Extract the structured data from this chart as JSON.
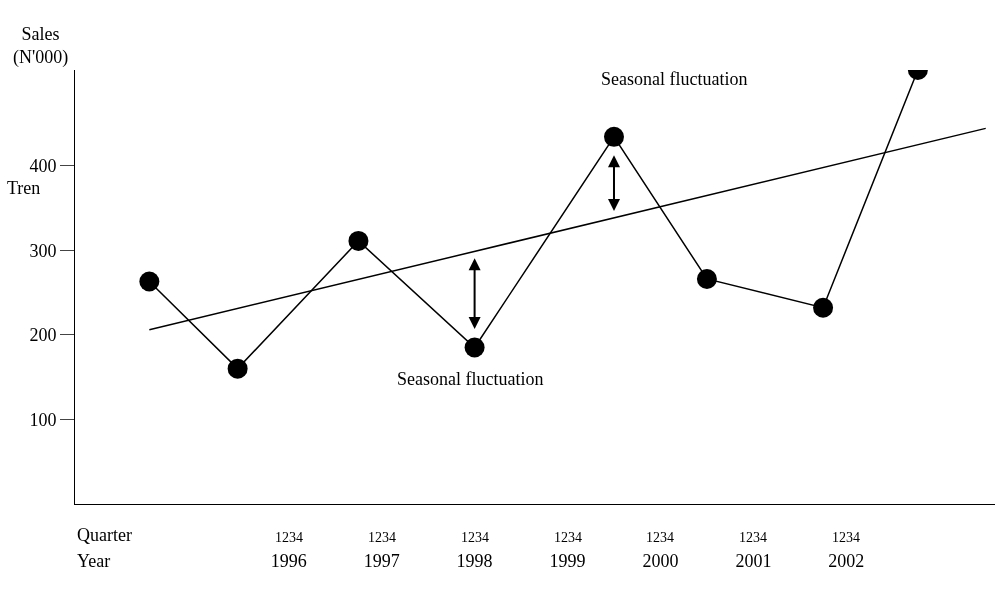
{
  "chart_data": {
    "type": "line",
    "ylabel": "Sales (N'000)",
    "x": [
      1994.5,
      1995.45,
      1996.75,
      1998.0,
      1999.5,
      2000.5,
      2001.75,
      2002.77
    ],
    "series": [
      {
        "color": "#000000",
        "values": [
          263,
          160,
          311,
          185,
          434,
          266,
          232,
          513
        ]
      },
      {
        "type": "line",
        "color": "#000000",
        "x": [
          1994.5,
          2003.5
        ],
        "values": [
          206,
          444
        ],
        "marker": "none"
      }
    ],
    "xlim": [
      1993.7,
      2003.6
    ],
    "ylim": [
      0,
      513
    ],
    "xticks": [
      {
        "value": 1996,
        "label": "1996"
      },
      {
        "value": 1997,
        "label": "1997"
      },
      {
        "value": 1998,
        "label": "1998"
      },
      {
        "value": 1999,
        "label": "1999"
      },
      {
        "value": 2000,
        "label": "2000"
      },
      {
        "value": 2001,
        "label": "2001"
      },
      {
        "value": 2002,
        "label": "2002"
      }
    ],
    "yticks": [
      100,
      200,
      300,
      400
    ],
    "marker": "circle",
    "annotations": [
      "Tren",
      {
        "text": "Seasonal fluctuation",
        "x": 1998.0,
        "y": 185
      },
      {
        "text": "Seasonal fluctuation",
        "x": 1999.5,
        "y": 434
      },
      "Quarter",
      "Year",
      "1234",
      "1234",
      "1234",
      "1234",
      "1234",
      "1234",
      "1234"
    ]
  }
}
